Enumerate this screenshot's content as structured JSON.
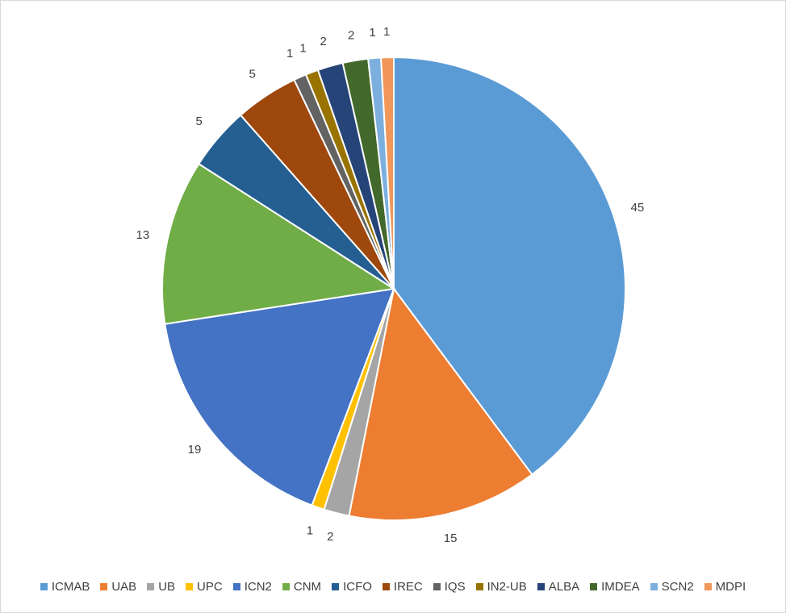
{
  "chart_data": {
    "type": "pie",
    "categories": [
      "ICMAB",
      "UAB",
      "UB",
      "UPC",
      "ICN2",
      "CNM",
      "ICFO",
      "IREC",
      "IQS",
      "IN2-UB",
      "ALBA",
      "IMDEA",
      "SCN2",
      "MDPI"
    ],
    "values": [
      45,
      15,
      2,
      1,
      19,
      13,
      5,
      5,
      1,
      1,
      2,
      2,
      1,
      1
    ],
    "colors": [
      "#5b9bd5",
      "#ed7d31",
      "#a5a5a5",
      "#ffc000",
      "#4472c4",
      "#70ad47",
      "#255e91",
      "#9e480e",
      "#636363",
      "#997300",
      "#264478",
      "#43682b",
      "#7cafdd",
      "#f1975a"
    ],
    "legend": "bottom"
  }
}
